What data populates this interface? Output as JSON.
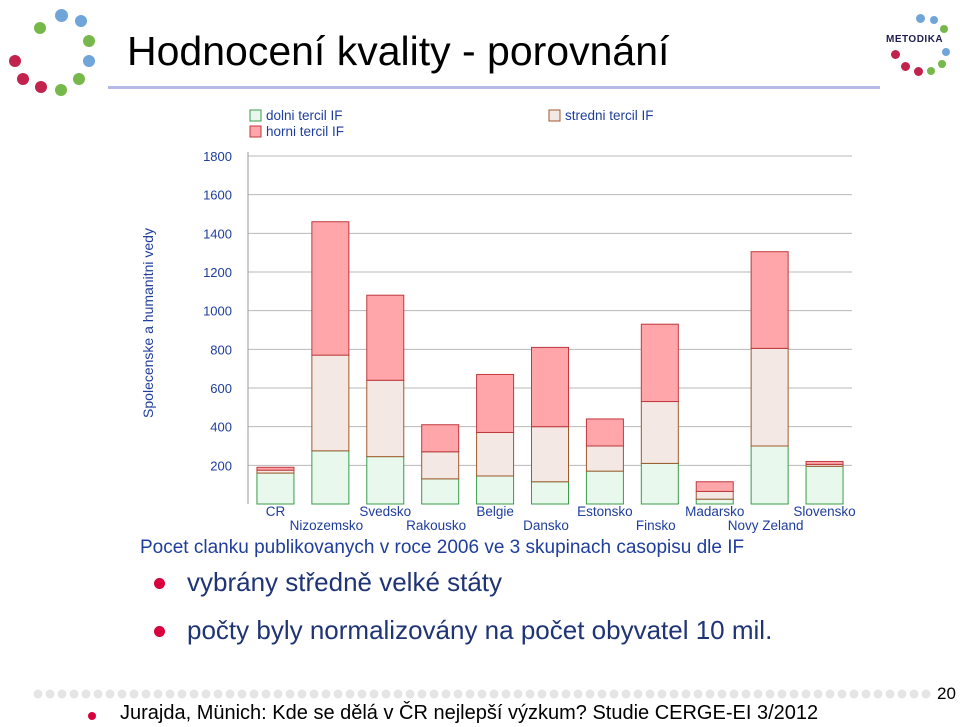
{
  "slide": {
    "title": "Hodnocení kvality - porovnání",
    "logo_text": "METODIKA",
    "bullets": [
      "vybrány středně velké státy",
      "počty byly normalizovány na počet obyvatel 10 mil."
    ],
    "footer": "Jurajda, Münich: Kde se dělá v ČR nejlepší výzkum? Studie CERGE-EI 3/2012",
    "page_number": "20",
    "colors": {
      "title_rule": "#b7b9e6",
      "bullet": "#d9003d",
      "bullet_text": "#1f3474",
      "dolni": "#e9f8ec",
      "stredni": "#f4e8e4",
      "horni": "#ffa6aa"
    }
  },
  "chart_data": {
    "type": "bar",
    "stacked": true,
    "title": "Pocet clanku publikovanych v roce 2006 ve 3 skupinach casopisu dle IF",
    "ylabel": "Spolecenske a humanitni vedy",
    "xlabel": "",
    "ylim": [
      0,
      1800
    ],
    "yticks": [
      200,
      400,
      600,
      800,
      1000,
      1200,
      1400,
      1600,
      1800
    ],
    "grid": true,
    "legend_position": "top",
    "categories": [
      "CR",
      "Nizozemsko",
      "Svedsko",
      "Rakousko",
      "Belgie",
      "Dansko",
      "Estonsko",
      "Finsko",
      "Madarsko",
      "Novy Zeland",
      "Slovensko"
    ],
    "series": [
      {
        "name": "dolni tercil IF",
        "values": [
          160,
          275,
          245,
          130,
          145,
          115,
          170,
          210,
          25,
          300,
          195
        ]
      },
      {
        "name": "stredni tercil IF",
        "values": [
          15,
          495,
          395,
          140,
          225,
          285,
          130,
          320,
          40,
          505,
          10
        ]
      },
      {
        "name": "horni tercil IF",
        "values": [
          15,
          690,
          440,
          140,
          300,
          410,
          140,
          400,
          50,
          500,
          15
        ]
      }
    ]
  }
}
